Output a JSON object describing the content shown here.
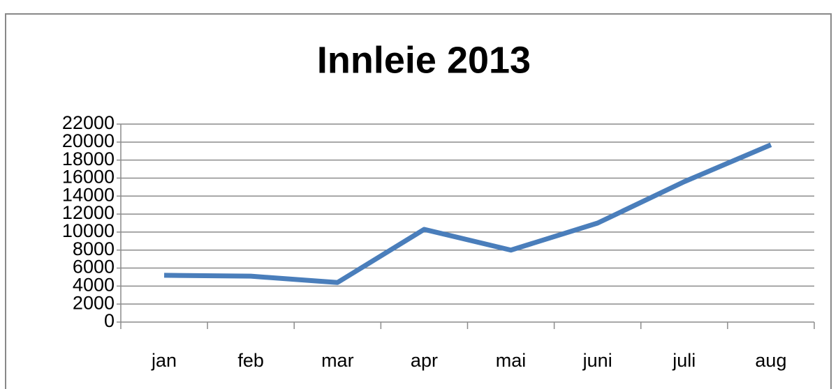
{
  "chart_data": {
    "type": "line",
    "title": "Innleie 2013",
    "categories": [
      "jan",
      "feb",
      "mar",
      "apr",
      "mai",
      "juni",
      "juli",
      "aug"
    ],
    "values": [
      5200,
      5100,
      4400,
      10300,
      8000,
      11000,
      15600,
      19700
    ],
    "color": "#4a7ebb",
    "ylim": [
      0,
      22000
    ],
    "yticks": [
      0,
      2000,
      4000,
      6000,
      8000,
      10000,
      12000,
      14000,
      16000,
      18000,
      20000,
      22000
    ],
    "grid": true
  }
}
